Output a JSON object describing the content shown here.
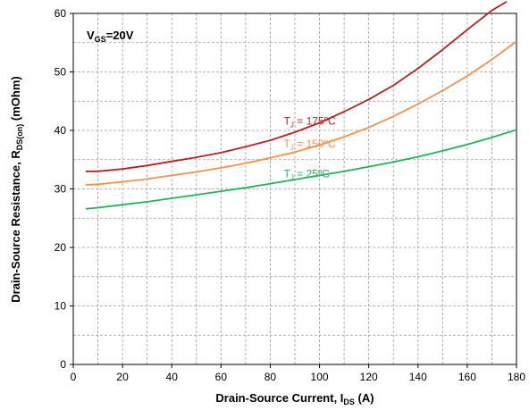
{
  "chart_data": {
    "type": "line",
    "title": "",
    "condition": {
      "main": "V",
      "sub": "GS",
      "rest": "=20V"
    },
    "xlabel": {
      "main": "Drain-Source Current, I",
      "sub": "DS",
      "rest": " (A)"
    },
    "ylabel": {
      "main": "Drain-Source Resistance, R",
      "sub": "DS(on)",
      "rest": "  (mOhm)"
    },
    "xlim": [
      0,
      180
    ],
    "ylim": [
      0,
      60
    ],
    "xticks": [
      "0",
      "20",
      "40",
      "60",
      "80",
      "100",
      "120",
      "140",
      "160",
      "180"
    ],
    "yticks": [
      "0",
      "10",
      "20",
      "30",
      "40",
      "50",
      "60"
    ],
    "grid": true,
    "series": [
      {
        "name": {
          "main": "T",
          "sub": "J",
          "rest": " = 175ºC"
        },
        "color": "#b22222",
        "x": [
          5,
          10,
          20,
          30,
          40,
          50,
          60,
          70,
          80,
          90,
          100,
          110,
          120,
          130,
          140,
          150,
          160,
          170,
          176
        ],
        "values": [
          33.0,
          33.0,
          33.4,
          34.0,
          34.7,
          35.4,
          36.2,
          37.2,
          38.3,
          39.7,
          41.3,
          43.2,
          45.3,
          47.7,
          50.6,
          53.8,
          57.2,
          60.5,
          62.0
        ]
      },
      {
        "name": {
          "main": "T",
          "sub": "J",
          "rest": " = 150ºC"
        },
        "color": "#f0914a",
        "x": [
          5,
          10,
          20,
          30,
          40,
          50,
          60,
          70,
          80,
          90,
          100,
          110,
          120,
          130,
          140,
          150,
          160,
          170,
          180
        ],
        "values": [
          30.7,
          30.8,
          31.2,
          31.7,
          32.3,
          32.9,
          33.6,
          34.4,
          35.3,
          36.3,
          37.5,
          38.9,
          40.5,
          42.4,
          44.5,
          46.8,
          49.3,
          52.1,
          55.2
        ]
      },
      {
        "name": {
          "main": "T",
          "sub": "J",
          "rest": " = 25ºC"
        },
        "color": "#22b35a",
        "x": [
          5,
          10,
          20,
          30,
          40,
          50,
          60,
          70,
          80,
          90,
          100,
          110,
          120,
          130,
          140,
          150,
          160,
          170,
          180
        ],
        "values": [
          26.6,
          26.8,
          27.3,
          27.8,
          28.4,
          29.0,
          29.6,
          30.2,
          30.9,
          31.6,
          32.3,
          33.0,
          33.8,
          34.6,
          35.5,
          36.5,
          37.6,
          38.8,
          40.1
        ]
      }
    ]
  }
}
